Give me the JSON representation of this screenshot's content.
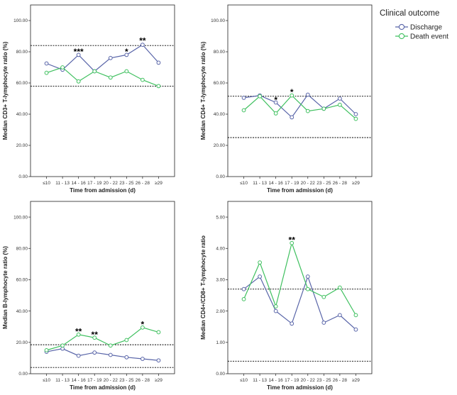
{
  "colors": {
    "discharge": "#5864a8",
    "death": "#3fc05f",
    "axis": "#222222",
    "reference": "#000000"
  },
  "legend": {
    "title": "Clinical outcome",
    "items": [
      {
        "key": "discharge",
        "label": "Discharge"
      },
      {
        "key": "death",
        "label": "Death event"
      }
    ]
  },
  "chart_data": [
    {
      "id": "cd3",
      "type": "line",
      "xlabel": "Time from admission (d)",
      "ylabel": "Median CD3+ T-lymphocyte ratio (%)",
      "categories": [
        "≤10",
        "11 - 13",
        "14 - 16",
        "17 - 19",
        "20 - 22",
        "23 - 25",
        "26 - 28",
        "≥29"
      ],
      "ylim": [
        0,
        110
      ],
      "yticks": [
        "0.00",
        "20.00",
        "40.00",
        "60.00",
        "80.00",
        "100.00"
      ],
      "ytick_values": [
        0,
        20,
        40,
        60,
        80,
        100
      ],
      "reference_lines": [
        84,
        58
      ],
      "series": [
        {
          "name": "Discharge",
          "key": "discharge",
          "values": [
            72.5,
            68.5,
            78,
            67.5,
            76,
            78,
            84.5,
            73
          ]
        },
        {
          "name": "Death event",
          "key": "death",
          "values": [
            66.5,
            70,
            61,
            67.5,
            63.5,
            67.5,
            62,
            58
          ]
        }
      ],
      "annotations": [
        {
          "index": 2,
          "text": "***",
          "value": 80
        },
        {
          "index": 5,
          "text": "*",
          "value": 80
        },
        {
          "index": 6,
          "text": "**",
          "value": 87
        }
      ]
    },
    {
      "id": "cd4",
      "type": "line",
      "xlabel": "Time from admission (d)",
      "ylabel": "Median CD4+ T-lymphocyte ratio (%)",
      "categories": [
        "≤10",
        "11 - 13",
        "14 - 16",
        "17 - 19",
        "20 - 22",
        "23 - 25",
        "26 - 28",
        "≥29"
      ],
      "ylim": [
        0,
        110
      ],
      "yticks": [
        "0.00",
        "20.00",
        "40.00",
        "60.00",
        "80.00",
        "100.00"
      ],
      "ytick_values": [
        0,
        20,
        40,
        60,
        80,
        100
      ],
      "reference_lines": [
        51.5,
        25
      ],
      "series": [
        {
          "name": "Discharge",
          "key": "discharge",
          "values": [
            50.5,
            52,
            47.5,
            38,
            52.5,
            43.5,
            50,
            40
          ]
        },
        {
          "name": "Death event",
          "key": "death",
          "values": [
            42.5,
            51.5,
            40.5,
            52,
            42,
            43.5,
            46,
            37
          ]
        }
      ],
      "annotations": [
        {
          "index": 2,
          "text": "*",
          "value": 49
        },
        {
          "index": 3,
          "text": "*",
          "value": 54
        }
      ]
    },
    {
      "id": "b",
      "type": "line",
      "xlabel": "Time from admission (d)",
      "ylabel": "Median B-lymphocyte ratio (%)",
      "categories": [
        "≤10",
        "11 - 13",
        "14 - 16",
        "17 - 19",
        "20 - 22",
        "23 - 25",
        "26 - 28",
        "≥29"
      ],
      "ylim": [
        0,
        110
      ],
      "yticks": [
        "0.00",
        "20.00",
        "40.00",
        "60.00",
        "80.00",
        "100.00"
      ],
      "ytick_values": [
        0,
        20,
        40,
        60,
        80,
        100
      ],
      "reference_lines": [
        18.5,
        4
      ],
      "series": [
        {
          "name": "Discharge",
          "key": "discharge",
          "values": [
            14,
            16,
            11.5,
            13.5,
            12,
            10.5,
            9.5,
            8.5
          ]
        },
        {
          "name": "Death event",
          "key": "death",
          "values": [
            15,
            18,
            25,
            23,
            18,
            21.5,
            29.5,
            26.5
          ]
        }
      ],
      "annotations": [
        {
          "index": 2,
          "text": "**",
          "value": 27
        },
        {
          "index": 3,
          "text": "**",
          "value": 25
        },
        {
          "index": 6,
          "text": "*",
          "value": 31.5
        }
      ]
    },
    {
      "id": "ratio",
      "type": "line",
      "xlabel": "Time from admission (d)",
      "ylabel": "Median CD4+/CD8+ T-lymphocyte ratio",
      "categories": [
        "≤10",
        "11 - 13",
        "14 - 16",
        "17 - 19",
        "20 - 22",
        "23 - 25",
        "26 - 28",
        "≥29"
      ],
      "ylim": [
        0,
        5.5
      ],
      "yticks": [
        "0.00",
        "1.00",
        "2.00",
        "3.00",
        "4.00",
        "5.00"
      ],
      "ytick_values": [
        0,
        1,
        2,
        3,
        4,
        5
      ],
      "reference_lines": [
        2.7,
        0.4
      ],
      "series": [
        {
          "name": "Discharge",
          "key": "discharge",
          "values": [
            2.7,
            3.1,
            2,
            1.6,
            3.1,
            1.63,
            1.87,
            1.41
          ]
        },
        {
          "name": "Death event",
          "key": "death",
          "values": [
            2.38,
            3.55,
            2.15,
            4.17,
            2.7,
            2.45,
            2.75,
            1.87
          ]
        }
      ],
      "annotations": [
        {
          "index": 3,
          "text": "**",
          "value": 4.27
        }
      ]
    }
  ]
}
